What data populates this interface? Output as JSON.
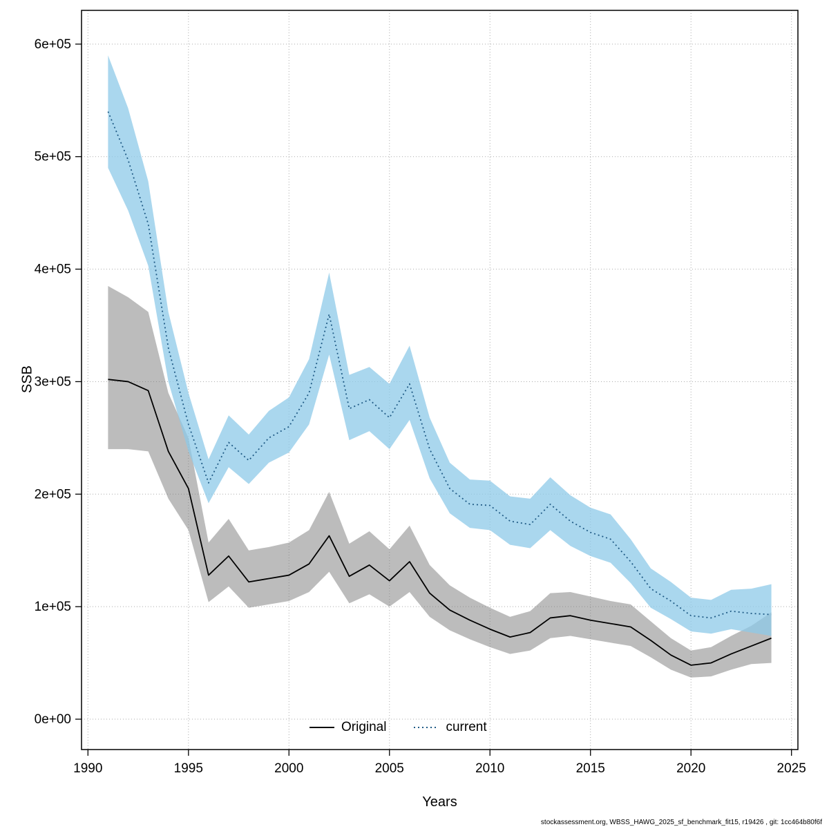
{
  "figure": {
    "xlabel": "Years",
    "ylabel": "SSB",
    "footer": "stockassessment.org, WBSS_HAWG_2025_sf_benchmark_fit15, r19426 , git: 1cc464b80f6f"
  },
  "chart_data": {
    "type": "line",
    "title": "",
    "xlabel": "Years",
    "ylabel": "SSB",
    "grid": true,
    "legend_position": "bottom-center-inside",
    "grid_color": "#aaaaaa",
    "xlim": [
      1989.68,
      2025.32
    ],
    "ylim": [
      -27000,
      630000
    ],
    "xticks": [
      1990,
      1995,
      2000,
      2005,
      2010,
      2015,
      2020,
      2025
    ],
    "xtick_labels": [
      "1990",
      "1995",
      "2000",
      "2005",
      "2010",
      "2015",
      "2020",
      "2025"
    ],
    "yticks": [
      0,
      100000,
      200000,
      300000,
      400000,
      500000,
      600000
    ],
    "ytick_labels": [
      "0e+00",
      "1e+05",
      "2e+05",
      "3e+05",
      "4e+05",
      "5e+05",
      "6e+05"
    ],
    "x": [
      1991,
      1992,
      1993,
      1994,
      1995,
      1996,
      1997,
      1998,
      1999,
      2000,
      2001,
      2002,
      2003,
      2004,
      2005,
      2006,
      2007,
      2008,
      2009,
      2010,
      2011,
      2012,
      2013,
      2014,
      2015,
      2016,
      2017,
      2018,
      2019,
      2020,
      2021,
      2022,
      2023,
      2024
    ],
    "series": [
      {
        "name": "Original",
        "line_color": "#000000",
        "line_style": "solid",
        "band_color": "#7a7a7a",
        "band_opacity": 0.5,
        "values": [
          302000,
          300000,
          292000,
          238000,
          205000,
          128000,
          145000,
          122000,
          125000,
          128000,
          138000,
          163000,
          127000,
          137000,
          123000,
          140000,
          112000,
          97000,
          88000,
          80000,
          73000,
          77000,
          90000,
          92000,
          88000,
          85000,
          82000,
          70000,
          57000,
          48000,
          50000,
          58000,
          65000,
          72000
        ],
        "lower": [
          240000,
          240000,
          238000,
          196000,
          168000,
          104000,
          118000,
          99000,
          102000,
          105000,
          113000,
          131000,
          103000,
          111000,
          100000,
          113000,
          91000,
          79000,
          71000,
          64000,
          58000,
          61000,
          72000,
          74000,
          71000,
          68000,
          65000,
          55000,
          44000,
          37000,
          38000,
          44000,
          49000,
          50000
        ],
        "upper": [
          385000,
          375000,
          362000,
          290000,
          250000,
          157000,
          178000,
          150000,
          153000,
          157000,
          168000,
          202000,
          156000,
          167000,
          151000,
          172000,
          137000,
          119000,
          108000,
          99000,
          91000,
          96000,
          112000,
          113000,
          109000,
          105000,
          102000,
          87000,
          72000,
          61000,
          64000,
          74000,
          83000,
          95000
        ]
      },
      {
        "name": "current",
        "line_color": "#1f5a85",
        "line_style": "dotted",
        "band_color": "#8ec9e8",
        "band_opacity": 0.75,
        "values": [
          540000,
          497000,
          440000,
          330000,
          262000,
          210000,
          246000,
          230000,
          250000,
          260000,
          290000,
          360000,
          276000,
          284000,
          268000,
          298000,
          240000,
          205000,
          191000,
          190000,
          176000,
          173000,
          191000,
          176000,
          166000,
          160000,
          140000,
          116000,
          105000,
          92000,
          90000,
          96000,
          94000,
          93000
        ],
        "lower": [
          490000,
          452000,
          403000,
          300000,
          238000,
          192000,
          224000,
          209000,
          228000,
          237000,
          262000,
          324000,
          248000,
          256000,
          240000,
          266000,
          214000,
          183000,
          170000,
          168000,
          155000,
          152000,
          168000,
          154000,
          145000,
          139000,
          121000,
          99000,
          89000,
          78000,
          76000,
          80000,
          77000,
          74000
        ],
        "upper": [
          590000,
          543000,
          478000,
          362000,
          290000,
          231000,
          270000,
          253000,
          274000,
          286000,
          320000,
          397000,
          306000,
          313000,
          298000,
          332000,
          268000,
          228000,
          213000,
          212000,
          198000,
          196000,
          215000,
          199000,
          188000,
          182000,
          160000,
          134000,
          122000,
          108000,
          106000,
          115000,
          116000,
          120000
        ]
      }
    ]
  }
}
